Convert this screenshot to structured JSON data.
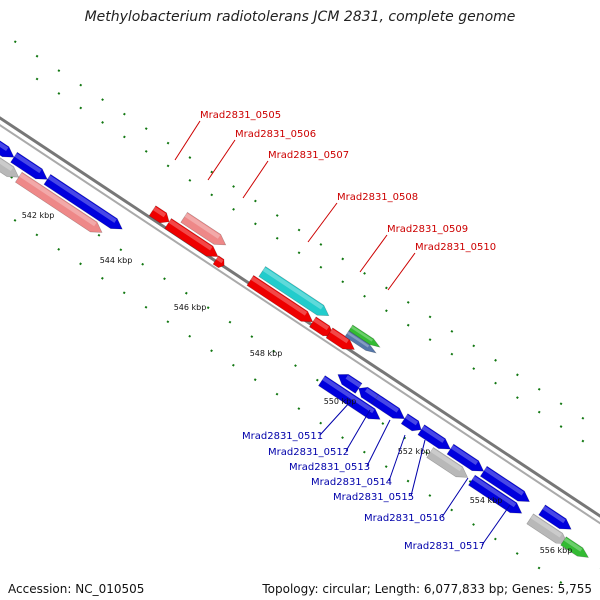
{
  "title": "Methylobacterium radiotolerans JCM 2831, complete genome",
  "footer": {
    "accession": "Accession: NC_010505",
    "summary": "Topology: circular; Length: 6,077,833 bp; Genes: 5,755"
  },
  "colors": {
    "red": "#ee0000",
    "pink": "#ee8888",
    "blue": "#0000dd",
    "grey": "#b8b8b8",
    "cyan": "#22cccc",
    "green": "#33bb33",
    "steel": "#5577aa",
    "red_label": "#cc0000",
    "blue_label": "#0000aa",
    "tick": "#117711"
  },
  "kbp_marks": [
    "542 kbp",
    "544 kbp",
    "546 kbp",
    "548 kbp",
    "550 kbp",
    "552 kbp",
    "554 kbp",
    "556 kbp"
  ],
  "labels_top": [
    "Mrad2831_0505",
    "Mrad2831_0506",
    "Mrad2831_0507",
    "Mrad2831_0508",
    "Mrad2831_0509",
    "Mrad2831_0510"
  ],
  "labels_bottom": [
    "Mrad2831_0511",
    "Mrad2831_0512",
    "Mrad2831_0513",
    "Mrad2831_0514",
    "Mrad2831_0515",
    "Mrad2831_0516",
    "Mrad2831_0517"
  ]
}
